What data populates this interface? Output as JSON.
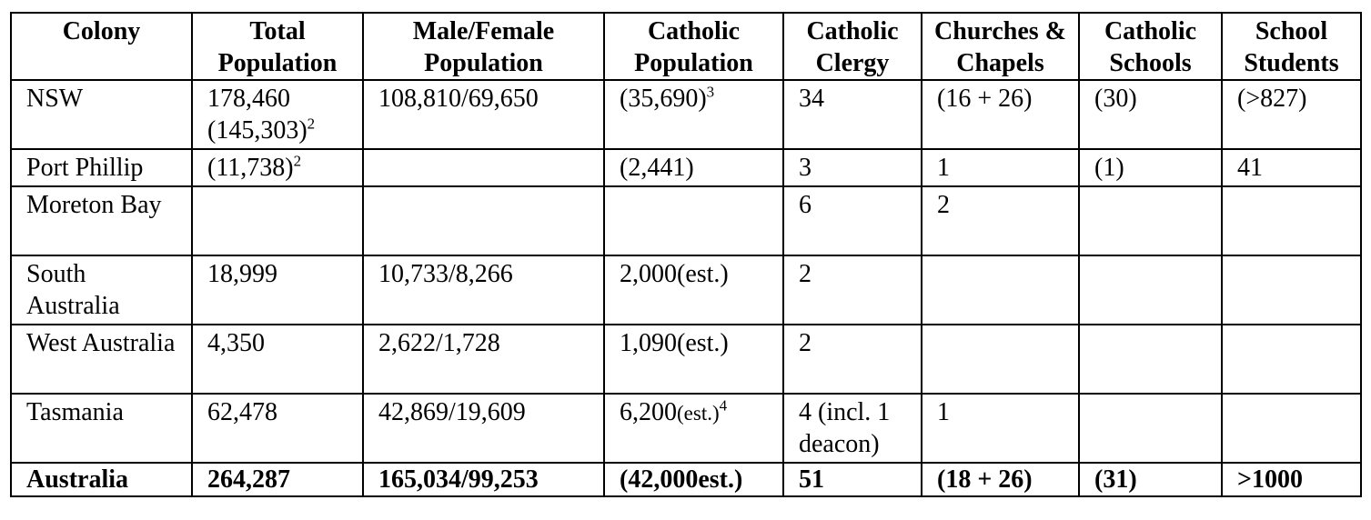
{
  "headers": [
    "Colony",
    "Total Population",
    "Male/Female Population",
    "Catholic Population",
    "Catholic Clergy",
    "Churches & Chapels",
    "Catholic Schools",
    "School Students"
  ],
  "rows": [
    {
      "colony": "NSW",
      "total_population": "178,460",
      "total_population_alt": "(145,303)",
      "total_population_alt_note": "2",
      "male_female": "108,810/69,650",
      "catholic_population": "(35,690)",
      "catholic_population_note": "3",
      "clergy": "34",
      "churches": "(16 + 26)",
      "schools": "(30)",
      "students": "(>827)"
    },
    {
      "colony": "Port Phillip",
      "total_population": "(11,738)",
      "total_population_note": "2",
      "male_female": "",
      "catholic_population": "(2,441)",
      "clergy": "3",
      "churches": "1",
      "schools": "(1)",
      "students": "41"
    },
    {
      "colony": "Moreton Bay",
      "total_population": "",
      "male_female": "",
      "catholic_population": "",
      "clergy": "6",
      "churches": "2",
      "schools": "",
      "students": ""
    },
    {
      "colony": "South Australia",
      "total_population": "18,999",
      "male_female": "10,733/8,266",
      "catholic_population": "2,000(est.)",
      "clergy": "2",
      "churches": "",
      "schools": "",
      "students": ""
    },
    {
      "colony": "West Australia",
      "total_population": "4,350",
      "male_female": "2,622/1,728",
      "catholic_population": "1,090(est.)",
      "clergy": "2",
      "churches": "",
      "schools": "",
      "students": ""
    },
    {
      "colony": "Tasmania",
      "total_population": "62,478",
      "male_female": "42,869/19,609",
      "catholic_population": "6,200",
      "catholic_population_est": "(est.)",
      "catholic_population_note": "4",
      "clergy": "4 (incl. 1 deacon)",
      "churches": "1",
      "schools": "",
      "students": ""
    }
  ],
  "total": {
    "colony": "Australia",
    "total_population": "264,287",
    "male_female": "165,034/99,253",
    "catholic_population": "(42,000est.)",
    "clergy": "51",
    "churches": "(18 + 26)",
    "schools": "(31)",
    "students": ">1000"
  }
}
